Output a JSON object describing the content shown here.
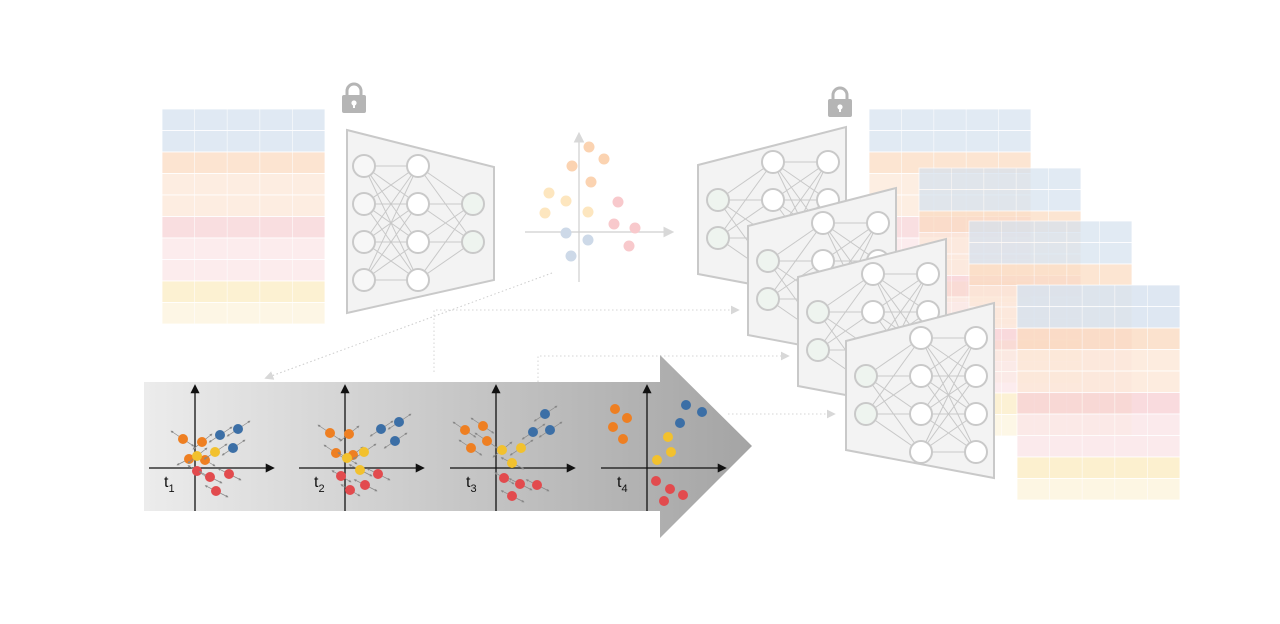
{
  "colors": {
    "blue_row": "#d6e2ef",
    "orange_row": "#fbdcc2",
    "peach_row": "#fde8d8",
    "red_row": "#f8d3d6",
    "pink_row": "#fbe6e8",
    "yellow_row": "#fcedc4",
    "cream_row": "#fdf4dd",
    "dot_orange": "#ee7f22",
    "dot_yellow": "#f2c12e",
    "dot_blue": "#3c6fa6",
    "dot_red": "#e24b4e",
    "network_fill": "#f3f3f3",
    "network_stroke": "#c9c9c9"
  },
  "icons": {
    "left_lock": "lock-icon",
    "right_lock": "lock-icon"
  },
  "timeline": {
    "steps": [
      {
        "t": "t",
        "sub": "1"
      },
      {
        "t": "t",
        "sub": "2"
      },
      {
        "t": "t",
        "sub": "3"
      },
      {
        "t": "t",
        "sub": "4"
      }
    ]
  }
}
